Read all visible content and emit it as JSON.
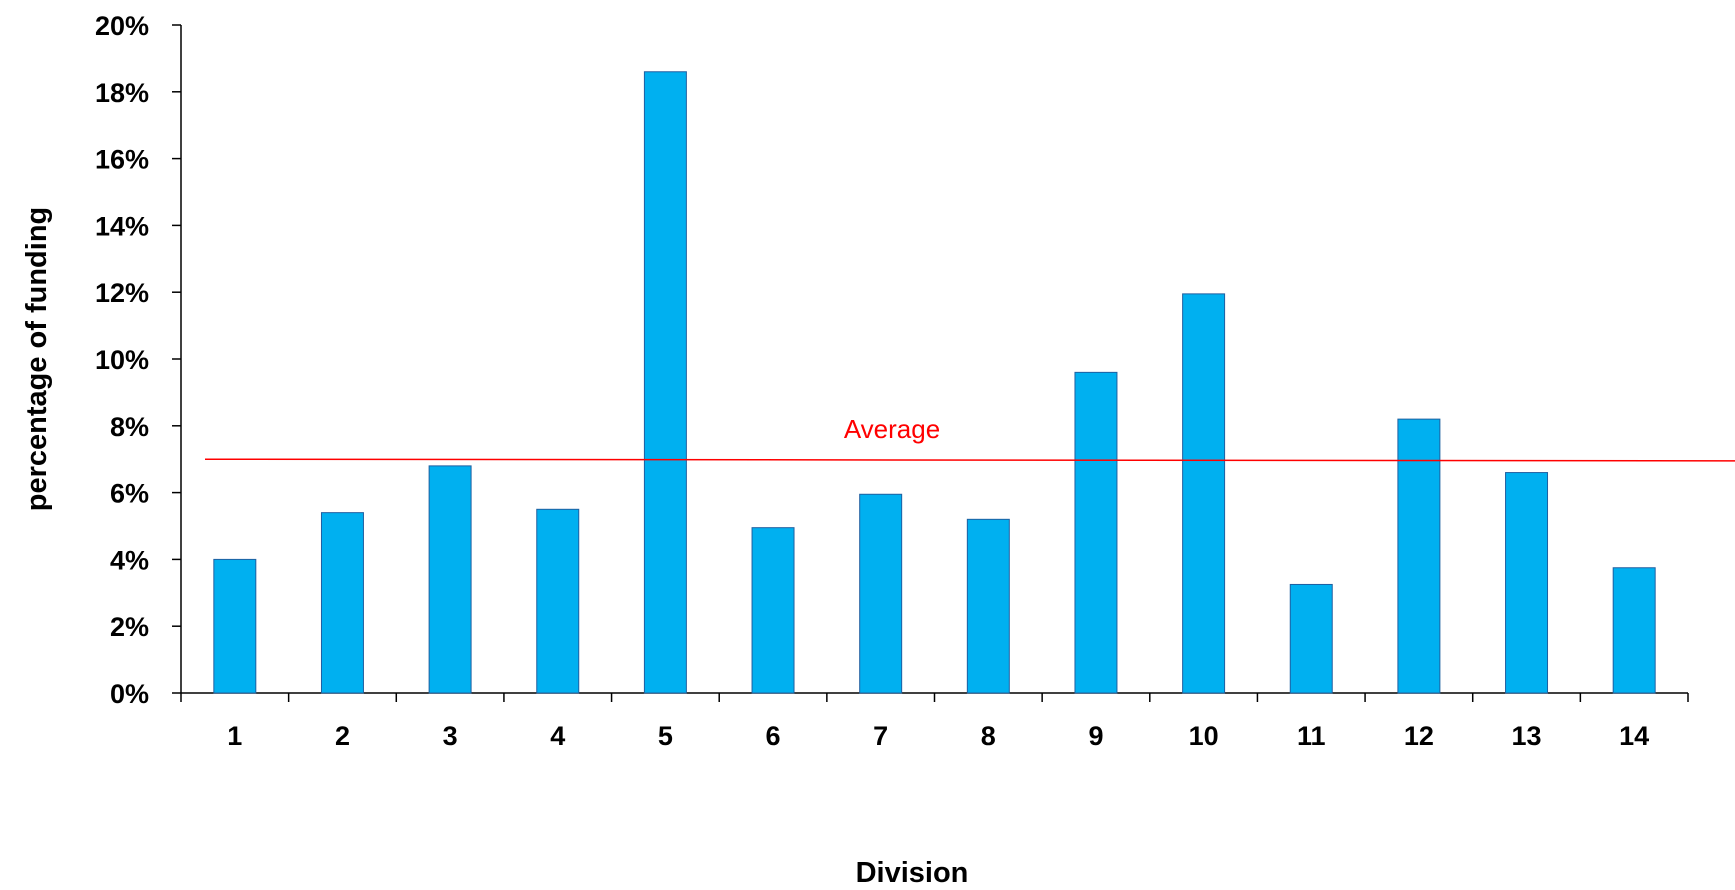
{
  "chart_data": {
    "type": "bar",
    "title": "",
    "xlabel": "Division",
    "ylabel": "percentage  of funding",
    "categories": [
      "1",
      "2",
      "3",
      "4",
      "5",
      "6",
      "7",
      "8",
      "9",
      "10",
      "11",
      "12",
      "13",
      "14"
    ],
    "values": [
      4.0,
      5.4,
      6.8,
      5.5,
      18.6,
      4.95,
      5.95,
      5.2,
      9.6,
      11.95,
      3.25,
      8.2,
      6.6,
      3.75
    ],
    "ylim": [
      0,
      20
    ],
    "ytick_step": 2,
    "ytick_format": "percent",
    "grid": false,
    "legend": "none",
    "bar_color": "#00B0F0",
    "bar_edge_color": "#1F5FA0",
    "reference_line": {
      "label": "Average",
      "value_start": 7.0,
      "value_end": 6.95,
      "color": "#FF0000"
    }
  }
}
